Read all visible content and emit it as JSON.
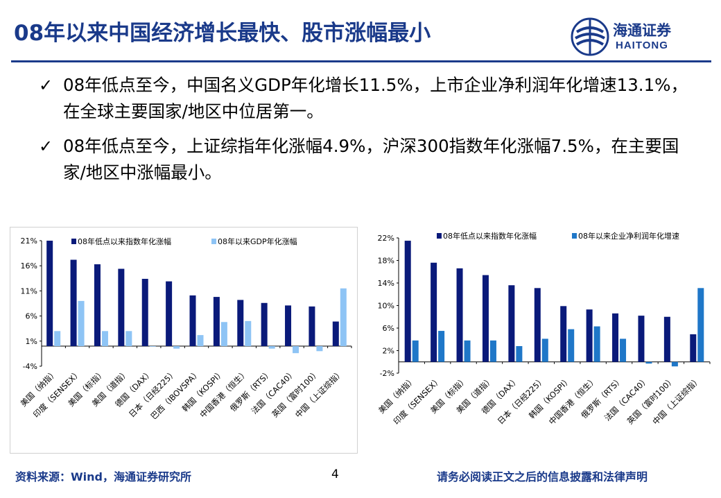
{
  "header": {
    "title": "08年以来中国经济增长最快、股市涨幅最小",
    "logo_cn": "海通证券",
    "logo_en": "HAITONG",
    "brand_color": "#1a3a8a"
  },
  "bullets": [
    "08年低点至今，中国名义GDP年化增长11.5%，上市企业净利润年化增速13.1%，在全球主要国家/地区中位居第一。",
    "08年低点至今，上证综指年化涨幅4.9%，沪深300指数年化涨幅7.5%，在主要国家/地区中涨幅最小。"
  ],
  "check_glyph": "✓",
  "chart_data": [
    {
      "type": "bar",
      "categories": [
        "美国（纳指）",
        "印度（SENSEX）",
        "美国（标指）",
        "美国（道指）",
        "德国（DAX）",
        "日本（日经225）",
        "巴西（IBOVSPA）",
        "韩国（KOSPI）",
        "中国香港（恒生）",
        "俄罗斯（RTS）",
        "法国（CAC40）",
        "英国（富时100）",
        "中国（上证综指）"
      ],
      "series": [
        {
          "name": "08年低点以来指数年化涨幅",
          "color": "#0a1a7a",
          "values": [
            21.0,
            17.2,
            16.3,
            15.4,
            13.4,
            12.9,
            10.1,
            9.8,
            9.2,
            8.6,
            8.1,
            7.9,
            4.9
          ]
        },
        {
          "name": "08年以来GDP年化涨幅",
          "color": "#8ec4f5",
          "values": [
            3.0,
            9.0,
            3.0,
            3.0,
            0.0,
            -0.5,
            2.2,
            4.8,
            5.0,
            -0.5,
            -1.4,
            -1.0,
            11.5
          ]
        }
      ],
      "yticks": [
        "21%",
        "16%",
        "11%",
        "6%",
        "1%",
        "-4%"
      ],
      "ylim": [
        -4,
        21
      ]
    },
    {
      "type": "bar",
      "categories": [
        "美国（纳指）",
        "印度（SENSEX）",
        "美国（标指）",
        "美国（道指）",
        "德国（DAX）",
        "日本（日经225）",
        "韩国（KOSPI）",
        "中国香港（恒生）",
        "俄罗斯（RTS）",
        "法国（CAC40）",
        "英国（富时100）",
        "中国（上证综指）"
      ],
      "series": [
        {
          "name": "08年低点以来指数年化涨幅",
          "color": "#0a1a7a",
          "values": [
            21.5,
            17.6,
            16.6,
            15.4,
            13.6,
            13.1,
            9.9,
            9.3,
            8.6,
            8.2,
            8.0,
            4.9
          ]
        },
        {
          "name": "08年以来企业净利润年化增速",
          "color": "#1f77c8",
          "values": [
            3.8,
            5.5,
            3.8,
            3.8,
            2.8,
            4.1,
            5.8,
            6.3,
            4.1,
            -0.3,
            -0.8,
            13.1
          ]
        }
      ],
      "yticks": [
        "22%",
        "18%",
        "14%",
        "10%",
        "6%",
        "2%",
        "-2%"
      ],
      "ylim": [
        -2,
        22
      ]
    }
  ],
  "footer": {
    "source": "资料来源：Wind，海通证券研究所",
    "page": "4",
    "disclaimer": "请务必阅读正文之后的信息披露和法律声明"
  }
}
